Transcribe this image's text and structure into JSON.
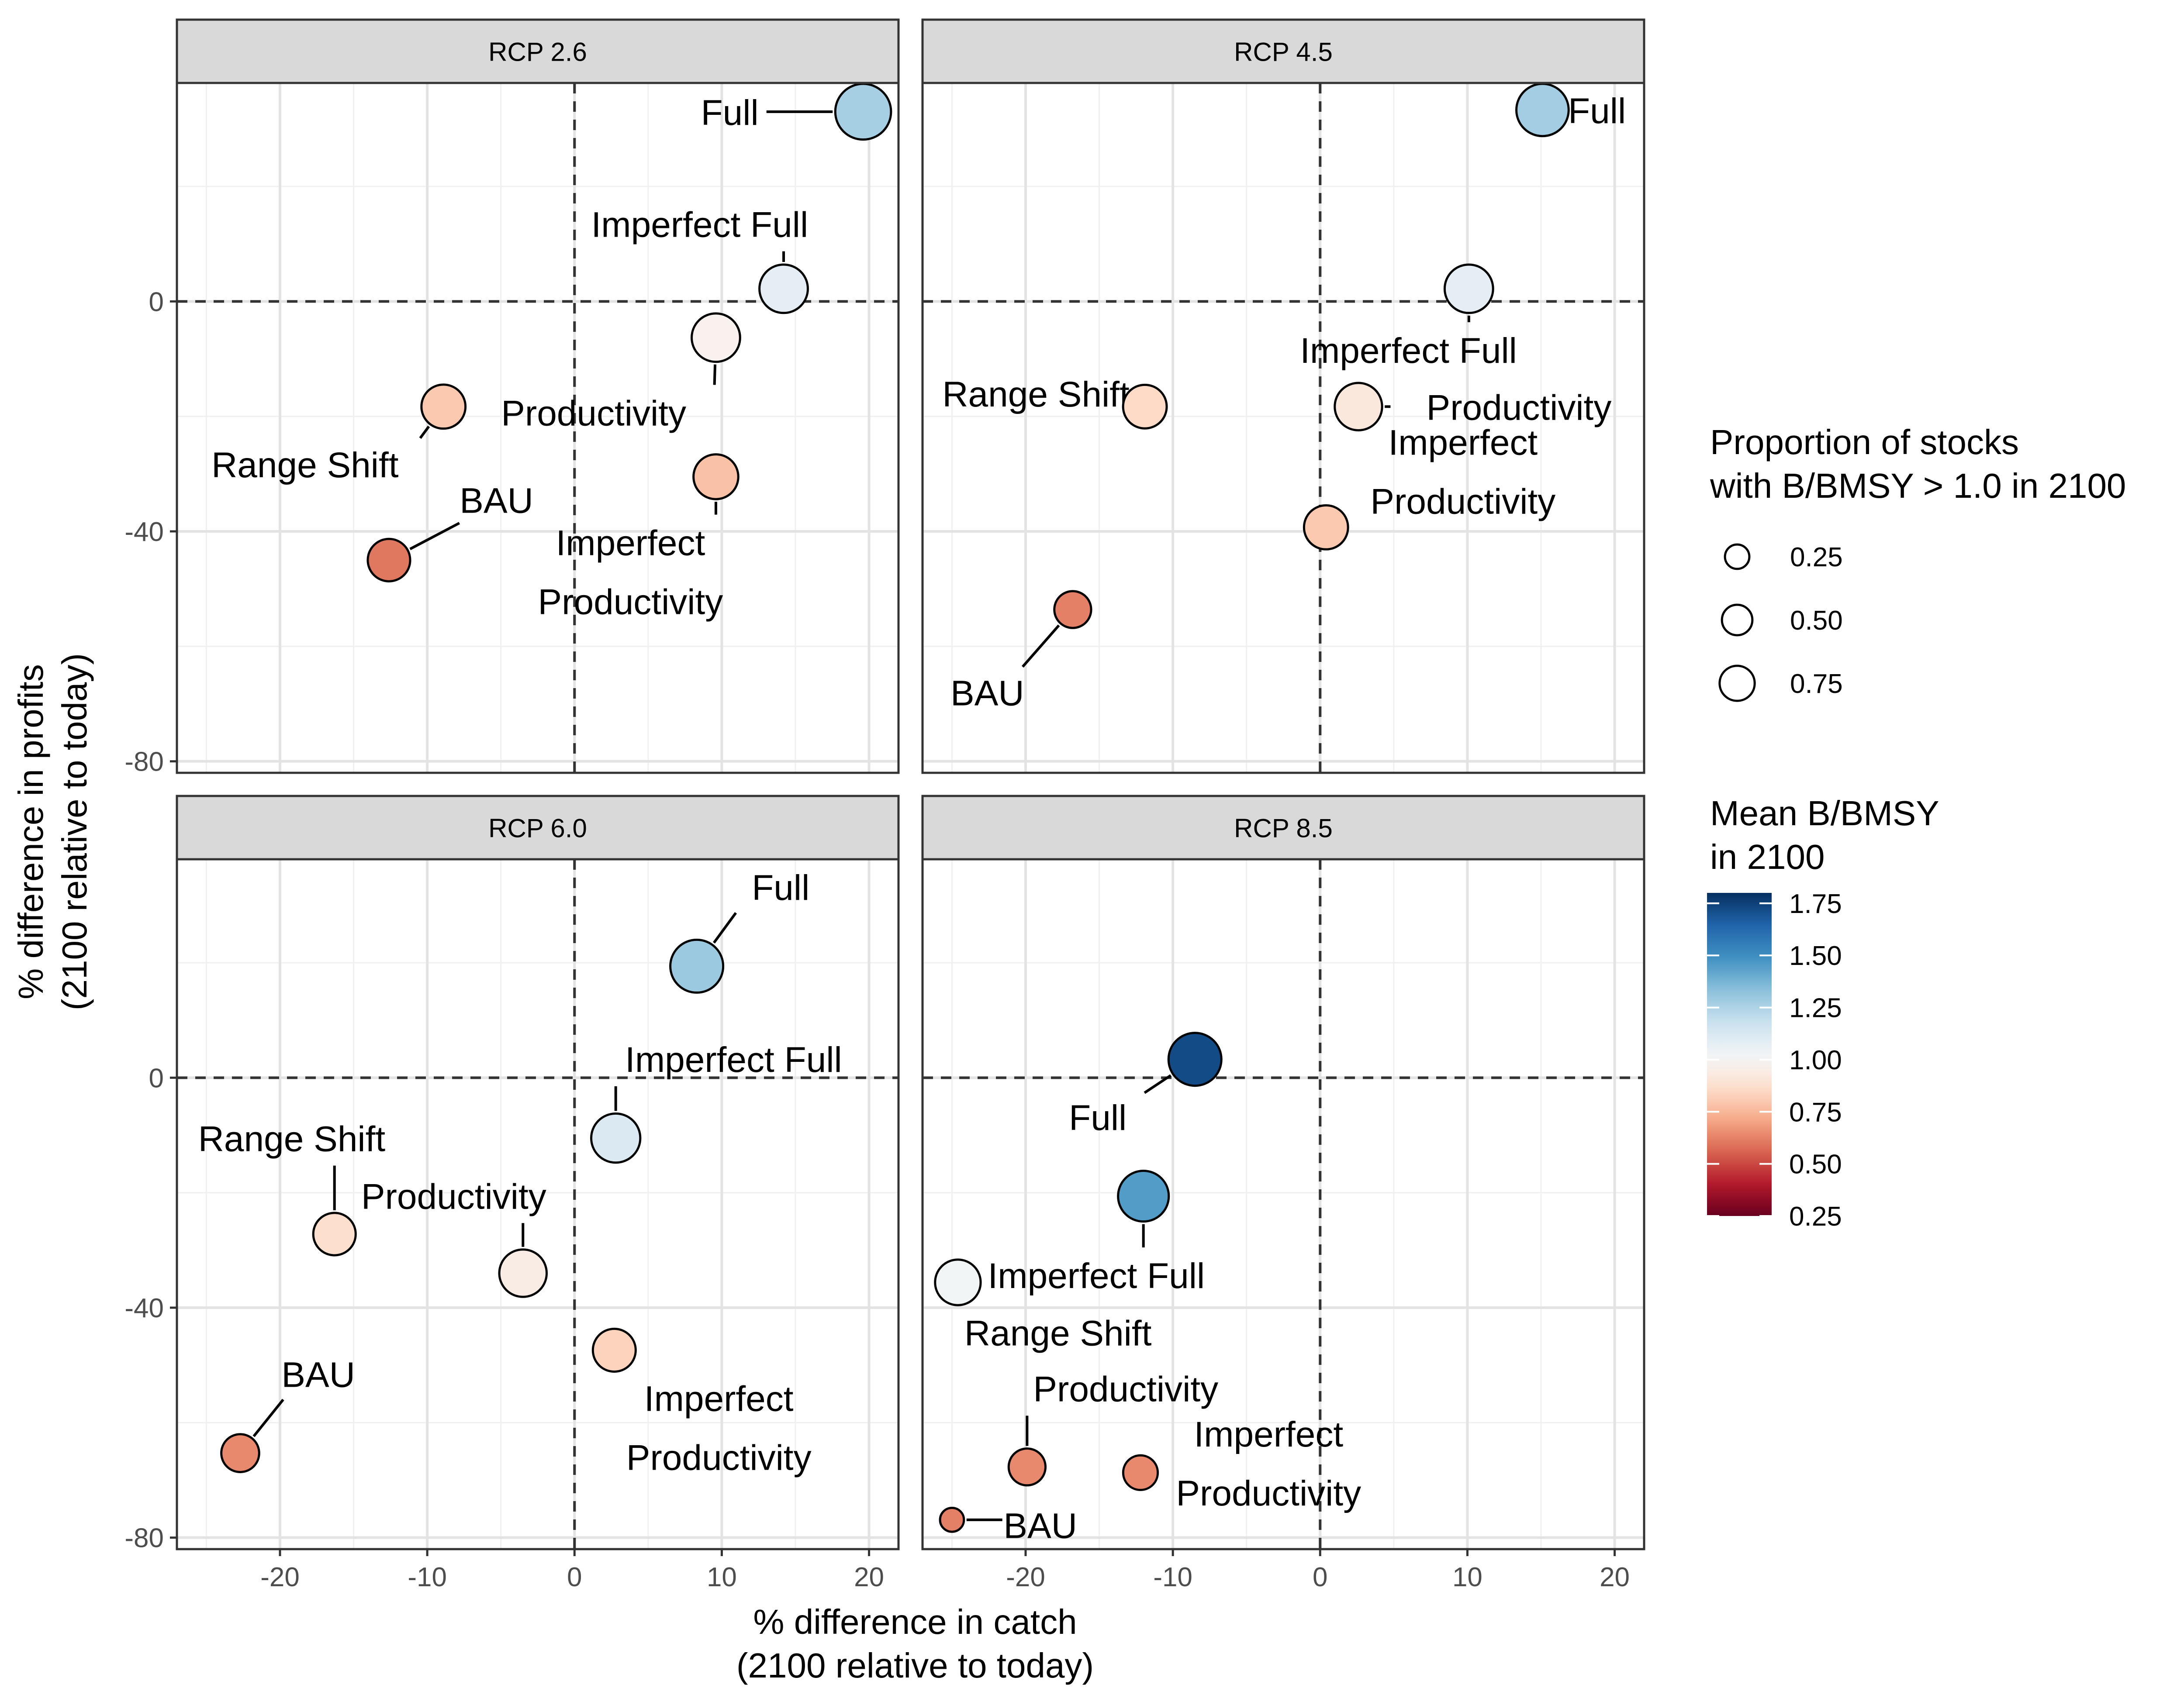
{
  "chart_data": {
    "type": "scatter",
    "layout": "facet-grid-2x2",
    "xlabel": [
      "% difference in catch",
      "(2100 relative to today)"
    ],
    "ylabel": [
      "% difference in profits",
      "(2100 relative to today)"
    ],
    "xlim": [
      -27,
      22
    ],
    "ylim": [
      -82,
      38
    ],
    "x_ticks": [
      -20,
      -10,
      0,
      10,
      20
    ],
    "y_ticks": [
      -80,
      -40,
      0
    ],
    "x_tick_labels": [
      "-20",
      "-10",
      "0",
      "10",
      "20"
    ],
    "y_tick_labels": [
      "-80",
      "-40",
      "0"
    ],
    "reference_lines": {
      "x": 0,
      "y": 0,
      "style": "dashed"
    },
    "grid": true,
    "size_legend": {
      "title": [
        "Proportion of stocks",
        "with B/BMSY > 1.0 in 2100"
      ],
      "entries": [
        {
          "value": 0.25,
          "label": "0.25"
        },
        {
          "value": 0.5,
          "label": "0.50"
        },
        {
          "value": 0.75,
          "label": "0.75"
        }
      ]
    },
    "color_legend": {
      "title": [
        "Mean B/BMSY",
        "in 2100"
      ],
      "range": [
        0.25,
        1.8
      ],
      "ticks": [
        1.75,
        1.5,
        1.25,
        1.0,
        0.75,
        0.5,
        0.25
      ],
      "tick_labels": [
        "1.75",
        "1.50",
        "1.25",
        "1.00",
        "0.75",
        "0.50",
        "0.25"
      ],
      "palette": "RdBu",
      "midpoint": 1.0
    },
    "panels": [
      {
        "name": "RCP 2.6",
        "points": [
          {
            "label": "Full",
            "label_lines": [
              "Full"
            ],
            "x": 19.6,
            "y": 33,
            "prop": 0.72,
            "bmsy": 1.27,
            "lx": 12.5,
            "ly": 33,
            "lanchor": "end"
          },
          {
            "label": "Imperfect Full",
            "label_lines": [
              "Imperfect Full"
            ],
            "x": 14.2,
            "y": 2.2,
            "prop": 0.48,
            "bmsy": 1.08,
            "lx": 8.5,
            "ly": 13.5,
            "lanchor": "middle"
          },
          {
            "label": "Productivity",
            "label_lines": [
              "Productivity"
            ],
            "x": 9.6,
            "y": -6.3,
            "prop": 0.48,
            "bmsy": 0.97,
            "lx": 1.3,
            "ly": -19.3,
            "lanchor": "middle"
          },
          {
            "label": "Range Shift",
            "label_lines": [
              "Range Shift"
            ],
            "x": -8.9,
            "y": -18.3,
            "prop": 0.36,
            "bmsy": 0.8,
            "lx": -18.3,
            "ly": -28.3,
            "lanchor": "middle"
          },
          {
            "label": "BAU",
            "label_lines": [
              "BAU"
            ],
            "x": -12.6,
            "y": -45,
            "prop": 0.32,
            "bmsy": 0.6,
            "lx": -5.3,
            "ly": -34.5,
            "lanchor": "middle"
          },
          {
            "label": "Imperfect Productivity",
            "label_lines": [
              "Imperfect",
              "Productivity"
            ],
            "x": 9.6,
            "y": -30.5,
            "prop": 0.38,
            "bmsy": 0.78,
            "lx": 3.8,
            "ly": -47,
            "lanchor": "middle"
          }
        ]
      },
      {
        "name": "RCP 4.5",
        "points": [
          {
            "label": "Full",
            "label_lines": [
              "Full"
            ],
            "x": 15.1,
            "y": 33.3,
            "prop": 0.6,
            "bmsy": 1.28,
            "lx": 18.8,
            "ly": 33.3,
            "lanchor": "middle"
          },
          {
            "label": "Imperfect Full",
            "label_lines": [
              "Imperfect Full"
            ],
            "x": 10.1,
            "y": 2.2,
            "prop": 0.48,
            "bmsy": 1.08,
            "lx": 6,
            "ly": -8.4,
            "lanchor": "middle"
          },
          {
            "label": "Productivity",
            "label_lines": [
              "Productivity"
            ],
            "x": 2.6,
            "y": -18.3,
            "prop": 0.45,
            "bmsy": 0.92,
            "lx": 13.5,
            "ly": -18.3,
            "lanchor": "middle"
          },
          {
            "label": "Range Shift",
            "label_lines": [
              "Range Shift"
            ],
            "x": -11.9,
            "y": -18.3,
            "prop": 0.35,
            "bmsy": 0.85,
            "lx": -19.3,
            "ly": -16,
            "lanchor": "middle"
          },
          {
            "label": "Imperfect Productivity",
            "label_lines": [
              "Imperfect",
              "Productivity"
            ],
            "x": 0.4,
            "y": -39.3,
            "prop": 0.36,
            "bmsy": 0.8,
            "lx": 9.7,
            "ly": -29.5,
            "lanchor": "middle"
          },
          {
            "label": "BAU",
            "label_lines": [
              "BAU"
            ],
            "x": -16.8,
            "y": -53.6,
            "prop": 0.2,
            "bmsy": 0.62,
            "lx": -22.6,
            "ly": -68,
            "lanchor": "middle"
          }
        ]
      },
      {
        "name": "RCP 6.0",
        "points": [
          {
            "label": "Full",
            "label_lines": [
              "Full"
            ],
            "x": 8.3,
            "y": 19.4,
            "prop": 0.62,
            "bmsy": 1.3,
            "lx": 14,
            "ly": 33.2,
            "lanchor": "middle"
          },
          {
            "label": "Imperfect Full",
            "label_lines": [
              "Imperfect Full"
            ],
            "x": 2.8,
            "y": -10.5,
            "prop": 0.5,
            "bmsy": 1.12,
            "lx": 10.8,
            "ly": 3.3,
            "lanchor": "middle"
          },
          {
            "label": "Range Shift",
            "label_lines": [
              "Range Shift"
            ],
            "x": -16.3,
            "y": -27.2,
            "prop": 0.32,
            "bmsy": 0.87,
            "lx": -19.2,
            "ly": -10.5,
            "lanchor": "middle"
          },
          {
            "label": "Productivity",
            "label_lines": [
              "Productivity"
            ],
            "x": -3.5,
            "y": -34,
            "prop": 0.45,
            "bmsy": 0.94,
            "lx": -8.2,
            "ly": -20.5,
            "lanchor": "middle"
          },
          {
            "label": "Imperfect Productivity",
            "label_lines": [
              "Imperfect",
              "Productivity"
            ],
            "x": 2.7,
            "y": -47.4,
            "prop": 0.33,
            "bmsy": 0.83,
            "lx": 9.8,
            "ly": -60.8,
            "lanchor": "middle"
          },
          {
            "label": "BAU",
            "label_lines": [
              "BAU"
            ],
            "x": -22.7,
            "y": -65.3,
            "prop": 0.22,
            "bmsy": 0.64,
            "lx": -17.4,
            "ly": -51.5,
            "lanchor": "middle"
          }
        ]
      },
      {
        "name": "RCP 8.5",
        "points": [
          {
            "label": "Full",
            "label_lines": [
              "Full"
            ],
            "x": -8.5,
            "y": 3.2,
            "prop": 0.62,
            "bmsy": 1.72,
            "lx": -15.1,
            "ly": -6.8,
            "lanchor": "middle"
          },
          {
            "label": "Imperfect Full",
            "label_lines": [
              "Imperfect Full"
            ],
            "x": -12,
            "y": -20.6,
            "prop": 0.55,
            "bmsy": 1.45,
            "lx": -15.2,
            "ly": -34.3,
            "lanchor": "middle"
          },
          {
            "label": "Range Shift",
            "label_lines": [
              "Range Shift"
            ],
            "x": -24.6,
            "y": -35.6,
            "prop": 0.4,
            "bmsy": 1.02,
            "lx": -17.8,
            "ly": -44.3,
            "lanchor": "middle"
          },
          {
            "label": "Productivity",
            "label_lines": [
              "Productivity"
            ],
            "x": -19.9,
            "y": -67.7,
            "prop": 0.2,
            "bmsy": 0.64,
            "lx": -13.2,
            "ly": -54,
            "lanchor": "middle"
          },
          {
            "label": "Imperfect Productivity",
            "label_lines": [
              "Imperfect",
              "Productivity"
            ],
            "x": -12.2,
            "y": -68.7,
            "prop": 0.16,
            "bmsy": 0.64,
            "lx": -3.5,
            "ly": -67,
            "lanchor": "middle"
          },
          {
            "label": "BAU",
            "label_lines": [
              "BAU"
            ],
            "x": -25,
            "y": -76.9,
            "prop": 0.03,
            "bmsy": 0.62,
            "lx": -19,
            "ly": -77.8,
            "lanchor": "middle"
          }
        ]
      }
    ]
  }
}
